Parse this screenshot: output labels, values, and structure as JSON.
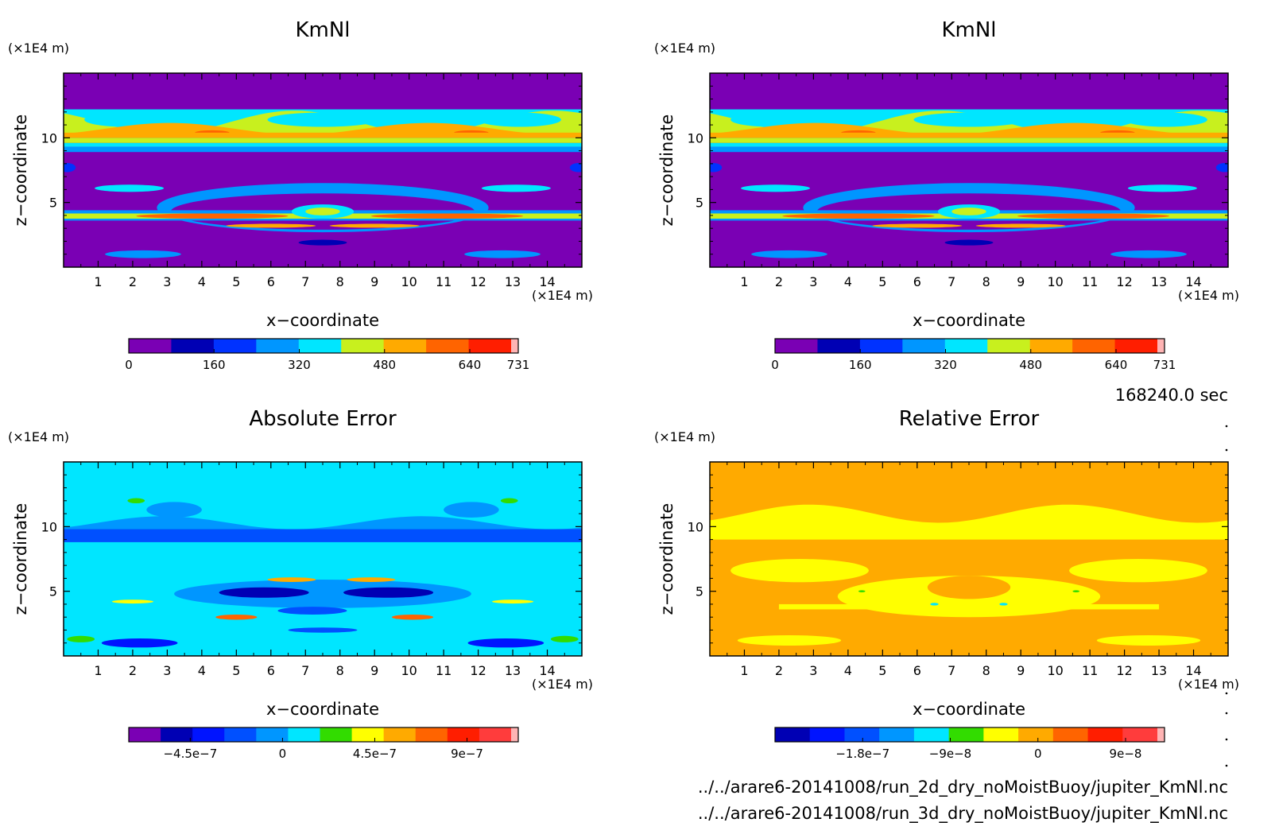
{
  "time_label": "168240.0 sec",
  "file_lines": [
    "../../arare6-20141008/run_2d_dry_noMoistBuoy/jupiter_KmNl.nc",
    "../../arare6-20141008/run_3d_dry_noMoistBuoy/jupiter_KmNl.nc"
  ],
  "chart_data": [
    {
      "type": "heatmap",
      "id": "kmnl-2d",
      "title": "KmNl",
      "xlabel": "x−coordinate",
      "ylabel": "z−coordinate",
      "x_unit": "(×1E4 m)",
      "y_unit": "(×1E4 m)",
      "xlim": [
        0,
        15
      ],
      "ylim": [
        0,
        15
      ],
      "x_ticks": [
        "1",
        "2",
        "3",
        "4",
        "5",
        "6",
        "7",
        "8",
        "9",
        "10",
        "11",
        "12",
        "13",
        "14"
      ],
      "y_ticks": [
        "5",
        "10"
      ],
      "field": "kmnl",
      "colorbar": {
        "range": [
          0,
          731
        ],
        "ticks": [
          {
            "v": 0,
            "label": "0"
          },
          {
            "v": 160,
            "label": "160"
          },
          {
            "v": 320,
            "label": "320"
          },
          {
            "v": 480,
            "label": "480"
          },
          {
            "v": 640,
            "label": "640"
          },
          {
            "v": 731,
            "label": "731"
          }
        ],
        "colors": [
          "#7a00b4",
          "#0000b4",
          "#0032ff",
          "#0096ff",
          "#00e6ff",
          "#c8f01e",
          "#ffaa00",
          "#ff6400",
          "#ff1e00",
          "#ffb4b4"
        ]
      }
    },
    {
      "type": "heatmap",
      "id": "kmnl-3d",
      "title": "KmNl",
      "xlabel": "x−coordinate",
      "ylabel": "z−coordinate",
      "x_unit": "(×1E4 m)",
      "y_unit": "(×1E4 m)",
      "xlim": [
        0,
        15
      ],
      "ylim": [
        0,
        15
      ],
      "x_ticks": [
        "1",
        "2",
        "3",
        "4",
        "5",
        "6",
        "7",
        "8",
        "9",
        "10",
        "11",
        "12",
        "13",
        "14"
      ],
      "y_ticks": [
        "5",
        "10"
      ],
      "field": "kmnl",
      "colorbar": {
        "range": [
          0,
          731
        ],
        "ticks": [
          {
            "v": 0,
            "label": "0"
          },
          {
            "v": 160,
            "label": "160"
          },
          {
            "v": 320,
            "label": "320"
          },
          {
            "v": 480,
            "label": "480"
          },
          {
            "v": 640,
            "label": "640"
          },
          {
            "v": 731,
            "label": "731"
          }
        ],
        "colors": [
          "#7a00b4",
          "#0000b4",
          "#0032ff",
          "#0096ff",
          "#00e6ff",
          "#c8f01e",
          "#ffaa00",
          "#ff6400",
          "#ff1e00",
          "#ffb4b4"
        ]
      }
    },
    {
      "type": "heatmap",
      "id": "absolute-error",
      "title": "Absolute Error",
      "xlabel": "x−coordinate",
      "ylabel": "z−coordinate",
      "x_unit": "(×1E4 m)",
      "y_unit": "(×1E4 m)",
      "xlim": [
        0,
        15
      ],
      "ylim": [
        0,
        15
      ],
      "x_ticks": [
        "1",
        "2",
        "3",
        "4",
        "5",
        "6",
        "7",
        "8",
        "9",
        "10",
        "11",
        "12",
        "13",
        "14"
      ],
      "y_ticks": [
        "5",
        "10"
      ],
      "field": "abserr",
      "colorbar": {
        "range": [
          -7.5e-07,
          1.15e-06
        ],
        "ticks": [
          {
            "v": -4.5e-07,
            "label": "−4.5e−7"
          },
          {
            "v": 0,
            "label": "0"
          },
          {
            "v": 4.5e-07,
            "label": "4.5e−7"
          },
          {
            "v": 9e-07,
            "label": "9e−7"
          }
        ],
        "colors": [
          "#7a00b4",
          "#0000b4",
          "#0014ff",
          "#0050ff",
          "#0096ff",
          "#00e6ff",
          "#32dc00",
          "#ffff00",
          "#ffaa00",
          "#ff6400",
          "#ff1e00",
          "#ff3c3c",
          "#ffb4b4"
        ]
      }
    },
    {
      "type": "heatmap",
      "id": "relative-error",
      "title": "Relative Error",
      "xlabel": "x−coordinate",
      "ylabel": "z−coordinate",
      "x_unit": "(×1E4 m)",
      "y_unit": "(×1E4 m)",
      "xlim": [
        0,
        15
      ],
      "ylim": [
        0,
        15
      ],
      "x_ticks": [
        "1",
        "2",
        "3",
        "4",
        "5",
        "6",
        "7",
        "8",
        "9",
        "10",
        "11",
        "12",
        "13",
        "14"
      ],
      "y_ticks": [
        "5",
        "10"
      ],
      "field": "relerr",
      "colorbar": {
        "range": [
          -2.7e-07,
          1.3e-07
        ],
        "ticks": [
          {
            "v": -1.8e-07,
            "label": "−1.8e−7"
          },
          {
            "v": -9e-08,
            "label": "−9e−8"
          },
          {
            "v": 0,
            "label": "0"
          },
          {
            "v": 9e-08,
            "label": "9e−8"
          }
        ],
        "colors": [
          "#0000b4",
          "#0014ff",
          "#0050ff",
          "#0096ff",
          "#00e6ff",
          "#32dc00",
          "#ffff00",
          "#ffaa00",
          "#ff6400",
          "#ff1e00",
          "#ff3c3c",
          "#ffb4b4"
        ]
      }
    }
  ]
}
